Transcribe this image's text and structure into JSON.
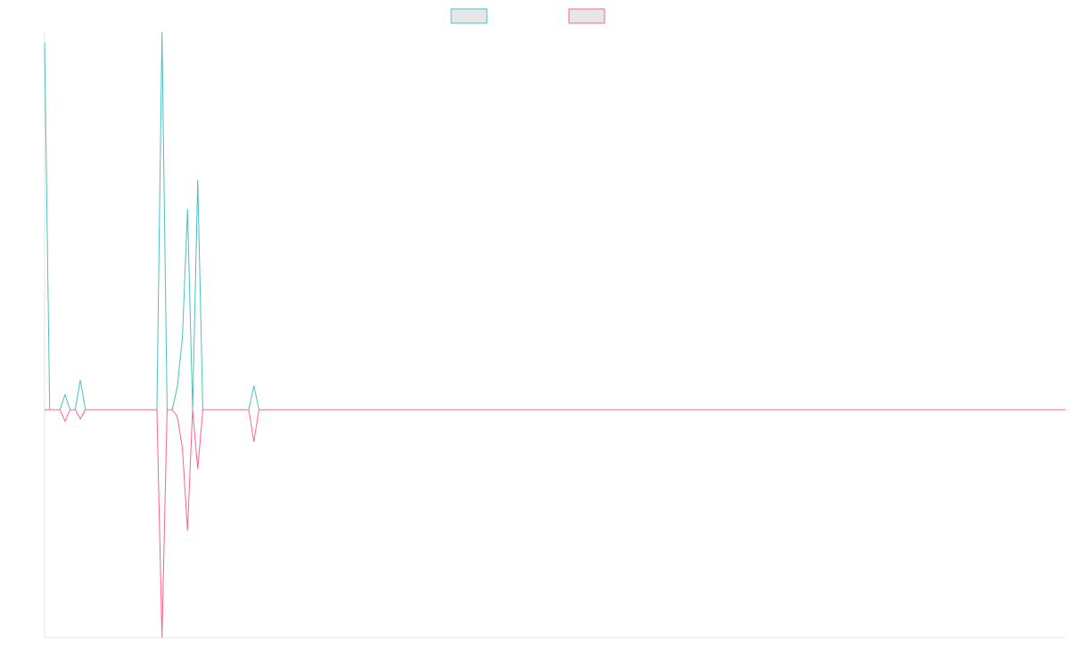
{
  "chart_data": {
    "type": "line",
    "categories": [
      null,
      null,
      null,
      null,
      null,
      null,
      null,
      null,
      null,
      null,
      null,
      null,
      null,
      null,
      null,
      null,
      null,
      null,
      null,
      null,
      null,
      null,
      null,
      null,
      null,
      null,
      null,
      null,
      null,
      null,
      null,
      null,
      null,
      null,
      null,
      null,
      null,
      null,
      null,
      null,
      null,
      null,
      null,
      null,
      null,
      null,
      null,
      null,
      null,
      null,
      null,
      null,
      null,
      null,
      null,
      null,
      null,
      null,
      null,
      null,
      null,
      null,
      null,
      null,
      null,
      null,
      null,
      null,
      null,
      null,
      null,
      null,
      null,
      null,
      null,
      null,
      null,
      null,
      null,
      null,
      null,
      null,
      null,
      null,
      null,
      null,
      null,
      null,
      null,
      null,
      null,
      null,
      null,
      null,
      null,
      null,
      null,
      null,
      null,
      null,
      null,
      null,
      null,
      null,
      null,
      null,
      null,
      null,
      null,
      null,
      null,
      null,
      null,
      null,
      null,
      null,
      null,
      null,
      null,
      null,
      null,
      null,
      null,
      null,
      null,
      null,
      null,
      null,
      null,
      null,
      null,
      null,
      null,
      null,
      null,
      null,
      null,
      null,
      null,
      null,
      null,
      null,
      null,
      null,
      null,
      null,
      null,
      null,
      null,
      null,
      null,
      null,
      null,
      null,
      null,
      null,
      null,
      null,
      null,
      null,
      null,
      null,
      null,
      null,
      null,
      null,
      null,
      null,
      null,
      null,
      null,
      null,
      null,
      null,
      null,
      null,
      null,
      null,
      null,
      null,
      null,
      null,
      null,
      null,
      null,
      null,
      null,
      null,
      null,
      null,
      null,
      null,
      null,
      null,
      null,
      null,
      null,
      null,
      null,
      null,
      null
    ],
    "series": [
      {
        "color": "#4bc0c0",
        "values": [
          161,
          0,
          0,
          0,
          6.6,
          0,
          0,
          13,
          0,
          0,
          0,
          0,
          0,
          0,
          0,
          0,
          0,
          0,
          0,
          0,
          0,
          0,
          0,
          165.6,
          0,
          0,
          10,
          31.6,
          88,
          0,
          100.8,
          0,
          0,
          0,
          0,
          0,
          0,
          0,
          0,
          0,
          0,
          10.5,
          0,
          0,
          0,
          0,
          0,
          0,
          0,
          0,
          0,
          0,
          0,
          0,
          0,
          0,
          0,
          0,
          0,
          0,
          0,
          0,
          0,
          0,
          0,
          0,
          0,
          0,
          0,
          0,
          0,
          0,
          0,
          0,
          0,
          0,
          0,
          0,
          0,
          0,
          0,
          0,
          0,
          0,
          0,
          0,
          0,
          0,
          0,
          0,
          0,
          0,
          0,
          0,
          0,
          0,
          0,
          0,
          0,
          0,
          0,
          0,
          0,
          0,
          0,
          0,
          0,
          0,
          0,
          0,
          0,
          0,
          0,
          0,
          0,
          0,
          0,
          0,
          0,
          0,
          0,
          0,
          0,
          0,
          0,
          0,
          0,
          0,
          0,
          0,
          0,
          0,
          0,
          0,
          0,
          0,
          0,
          0,
          0,
          0,
          0,
          0,
          0,
          0,
          0,
          0,
          0,
          0,
          0,
          0,
          0,
          0,
          0,
          0,
          0,
          0,
          0,
          0,
          0,
          0,
          0,
          0,
          0,
          0,
          0,
          0,
          0,
          0,
          0,
          0,
          0,
          0,
          0,
          0,
          0,
          0,
          0,
          0,
          0,
          0,
          0,
          0,
          0,
          0,
          0,
          0,
          0,
          0,
          0,
          0,
          0,
          0,
          0,
          0,
          0,
          0,
          0,
          0,
          0,
          0,
          0
        ]
      },
      {
        "color": "#ff6384",
        "values": [
          0,
          0,
          0,
          0,
          -5,
          0,
          0,
          -4,
          0,
          0,
          0,
          0,
          0,
          0,
          0,
          0,
          0,
          0,
          0,
          0,
          0,
          0,
          0,
          -100,
          0,
          0,
          -3,
          -16.8,
          -53,
          0,
          -26,
          0,
          0,
          0,
          0,
          0,
          0,
          0,
          0,
          0,
          0,
          -14,
          0,
          0,
          0,
          0,
          0,
          0,
          0,
          0,
          0,
          0,
          0,
          0,
          0,
          0,
          0,
          0,
          0,
          0,
          0,
          0,
          0,
          0,
          0,
          0,
          0,
          0,
          0,
          0,
          0,
          0,
          0,
          0,
          0,
          0,
          0,
          0,
          0,
          0,
          0,
          0,
          0,
          0,
          0,
          0,
          0,
          0,
          0,
          0,
          0,
          0,
          0,
          0,
          0,
          0,
          0,
          0,
          0,
          0,
          0,
          0,
          0,
          0,
          0,
          0,
          0,
          0,
          0,
          0,
          0,
          0,
          0,
          0,
          0,
          0,
          0,
          0,
          0,
          0,
          0,
          0,
          0,
          0,
          0,
          0,
          0,
          0,
          0,
          0,
          0,
          0,
          0,
          0,
          0,
          0,
          0,
          0,
          0,
          0,
          0,
          0,
          0,
          0,
          0,
          0,
          0,
          0,
          0,
          0,
          0,
          0,
          0,
          0,
          0,
          0,
          0,
          0,
          0,
          0,
          0,
          0,
          0,
          0,
          0,
          0,
          0,
          0,
          0,
          0,
          0,
          0,
          0,
          0,
          0,
          0,
          0,
          0,
          0,
          0,
          0,
          0,
          0,
          0,
          0,
          0,
          0,
          0,
          0,
          0,
          0,
          0,
          0,
          0,
          0,
          0,
          0,
          0,
          0,
          0,
          0
        ]
      }
    ],
    "ylim": [
      -100,
      165.6
    ],
    "legend": "top",
    "legend_box_fill": "#e6e6e6"
  }
}
